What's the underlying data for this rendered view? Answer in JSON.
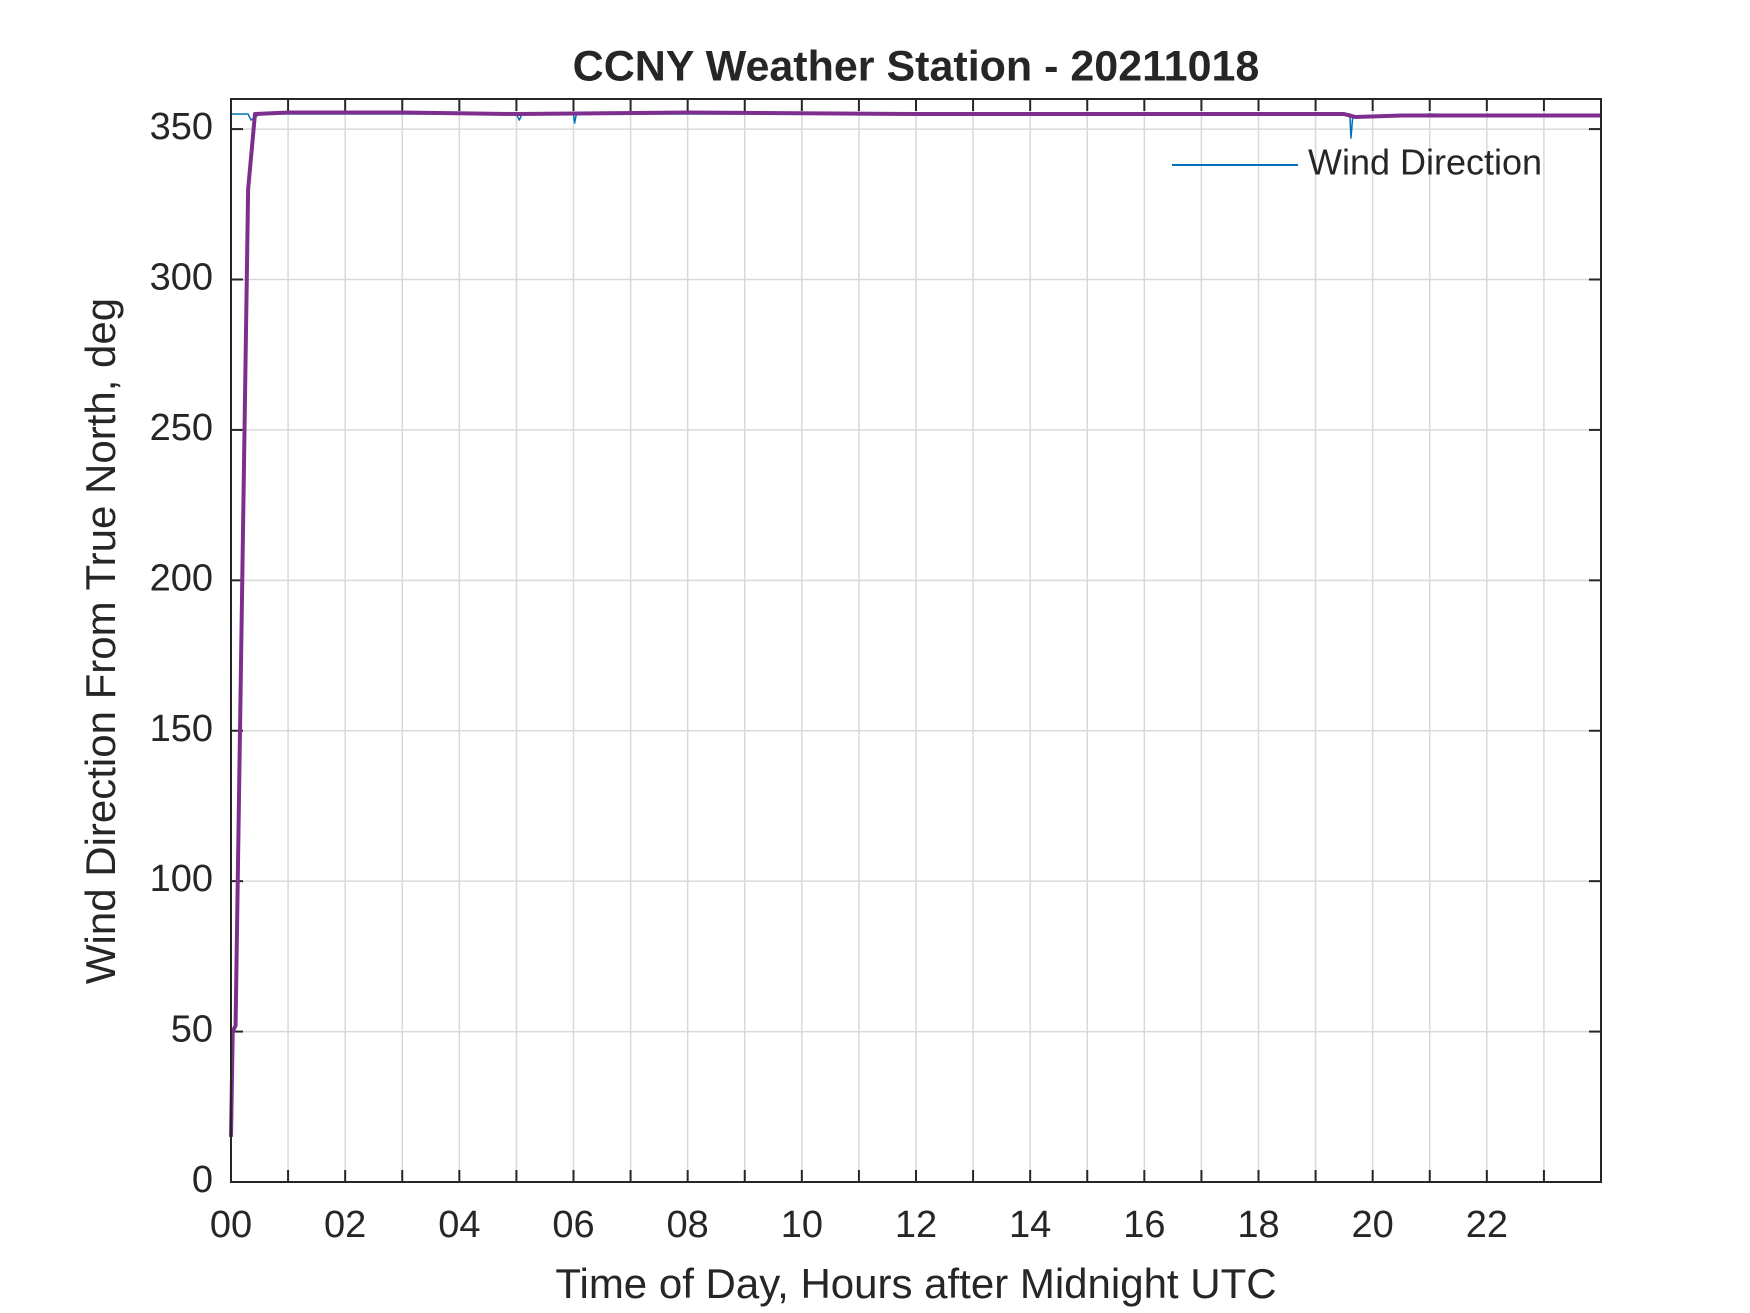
{
  "chart_data": {
    "type": "line",
    "title": "CCNY Weather Station - 20211018",
    "xlabel": "Time of Day, Hours after Midnight UTC",
    "ylabel": "Wind Direction From True North, deg",
    "xlim": [
      0,
      24
    ],
    "ylim": [
      0,
      360
    ],
    "xticks": [
      {
        "value": 0,
        "label": "00"
      },
      {
        "value": 2,
        "label": "02"
      },
      {
        "value": 4,
        "label": "04"
      },
      {
        "value": 6,
        "label": "06"
      },
      {
        "value": 8,
        "label": "08"
      },
      {
        "value": 10,
        "label": "10"
      },
      {
        "value": 12,
        "label": "12"
      },
      {
        "value": 14,
        "label": "14"
      },
      {
        "value": 16,
        "label": "16"
      },
      {
        "value": 18,
        "label": "18"
      },
      {
        "value": 20,
        "label": "20"
      },
      {
        "value": 22,
        "label": "22"
      }
    ],
    "xminor_ticks": [
      1,
      3,
      5,
      7,
      9,
      11,
      13,
      15,
      17,
      19,
      21,
      23
    ],
    "yticks": [
      0,
      50,
      100,
      150,
      200,
      250,
      300,
      350
    ],
    "grid": true,
    "legend": "upper right",
    "series": [
      {
        "name": "Wind Direction",
        "color": "#0072bd",
        "width": 1.5,
        "x": [
          0,
          0.3,
          0.35,
          0.5,
          1,
          2,
          3,
          4,
          5,
          5.05,
          5.1,
          6,
          6.02,
          6.05,
          7,
          8,
          10,
          12,
          14,
          16,
          18,
          19,
          19.6,
          19.62,
          19.65,
          20,
          21,
          22,
          23,
          24
        ],
        "values": [
          355,
          355,
          353,
          355,
          355,
          355,
          355,
          355,
          355,
          353,
          355,
          355,
          352,
          355,
          355,
          355,
          355,
          355,
          355,
          355,
          355,
          355,
          355,
          347,
          354,
          354,
          355,
          354.5,
          354.5,
          354.5
        ]
      },
      {
        "color": "#7e2f8e",
        "width": 4,
        "x": [
          0,
          0.03,
          0.08,
          0.3,
          0.42,
          1,
          3,
          5,
          8,
          12,
          16,
          19,
          19.5,
          19.7,
          20.5,
          22,
          24
        ],
        "values": [
          15,
          50,
          52,
          330,
          355,
          355.5,
          355.5,
          355,
          355.5,
          355,
          355,
          355,
          355,
          354,
          354.5,
          354.5,
          354.5
        ]
      }
    ]
  }
}
